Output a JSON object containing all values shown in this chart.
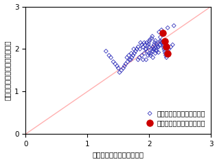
{
  "xlabel": "推定式より求めた日突風率",
  "ylabel": "観測データより求めた日突風率",
  "xlim": [
    0.0,
    3.0
  ],
  "ylim": [
    0.0,
    3.0
  ],
  "xticks": [
    0.0,
    1.0,
    2.0,
    3.0
  ],
  "yticks": [
    0.0,
    1.0,
    2.0,
    3.0
  ],
  "diagonal_color": "#ffb0b0",
  "blue_color": "#3333bb",
  "red_color": "#cc0000",
  "legend_label_blue": "気象官署のデータによる値",
  "legend_label_red": "局地風の観測で得られた値",
  "blue_x": [
    1.3,
    1.35,
    1.38,
    1.42,
    1.45,
    1.48,
    1.5,
    1.52,
    1.55,
    1.58,
    1.6,
    1.62,
    1.65,
    1.67,
    1.68,
    1.7,
    1.72,
    1.74,
    1.75,
    1.76,
    1.78,
    1.8,
    1.82,
    1.82,
    1.84,
    1.85,
    1.86,
    1.88,
    1.88,
    1.9,
    1.9,
    1.92,
    1.92,
    1.93,
    1.94,
    1.95,
    1.95,
    1.96,
    1.97,
    1.98,
    1.98,
    1.99,
    2.0,
    2.0,
    2.0,
    2.01,
    2.02,
    2.03,
    2.04,
    2.04,
    2.05,
    2.05,
    2.06,
    2.06,
    2.07,
    2.08,
    2.08,
    2.09,
    2.1,
    2.1,
    2.11,
    2.12,
    2.12,
    2.13,
    2.14,
    2.15,
    2.15,
    2.16,
    2.17,
    2.18,
    2.18,
    2.19,
    2.2,
    2.2,
    2.21,
    2.22,
    2.23,
    2.24,
    2.25,
    2.26,
    2.27,
    2.28,
    2.3,
    2.32,
    2.35,
    2.38,
    2.4,
    1.64,
    1.71
  ],
  "blue_y": [
    1.95,
    1.85,
    1.8,
    1.7,
    1.65,
    1.6,
    1.55,
    1.45,
    1.5,
    1.55,
    1.6,
    1.65,
    1.7,
    1.85,
    1.75,
    1.75,
    1.8,
    1.85,
    2.0,
    1.9,
    1.95,
    2.0,
    2.05,
    1.75,
    1.8,
    2.0,
    2.15,
    2.1,
    1.85,
    2.05,
    1.75,
    2.15,
    1.9,
    2.1,
    2.0,
    2.0,
    1.75,
    2.15,
    1.95,
    2.08,
    1.85,
    2.12,
    2.18,
    1.9,
    2.05,
    2.22,
    1.85,
    1.9,
    2.25,
    2.0,
    2.3,
    1.95,
    2.05,
    1.8,
    2.0,
    2.1,
    2.0,
    2.15,
    2.2,
    1.9,
    1.98,
    2.12,
    1.95,
    2.08,
    2.05,
    1.92,
    2.05,
    2.4,
    2.18,
    2.28,
    2.1,
    2.18,
    2.45,
    2.15,
    2.15,
    2.1,
    2.05,
    2.0,
    1.95,
    1.9,
    1.85,
    1.8,
    2.5,
    2.0,
    2.05,
    2.1,
    2.55,
    1.8,
    1.9
  ],
  "red_x": [
    2.22,
    2.25,
    2.28,
    2.3
  ],
  "red_y": [
    2.38,
    2.18,
    2.05,
    1.9
  ],
  "fontsize": 7.5,
  "tick_fontsize": 7.5,
  "legend_fontsize": 7
}
